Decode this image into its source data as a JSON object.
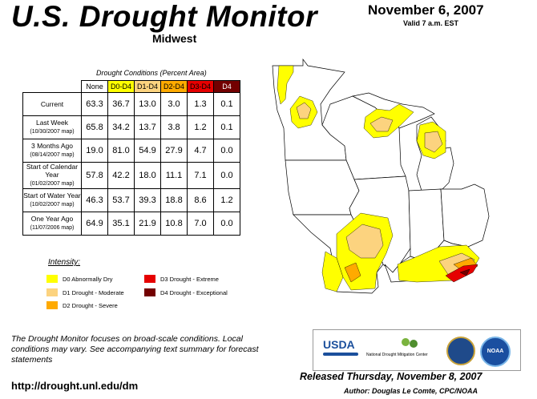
{
  "title": "U.S. Drought Monitor",
  "region": "Midwest",
  "date": "November 6, 2007",
  "valid": "Valid 7 a.m. EST",
  "table": {
    "caption": "Drought Conditions (Percent Area)",
    "headers": [
      "None",
      "D0-D4",
      "D1-D4",
      "D2-D4",
      "D3-D4",
      "D4"
    ],
    "rows": [
      {
        "label": "Current",
        "sublabel": "",
        "values": [
          "63.3",
          "36.7",
          "13.0",
          "3.0",
          "1.3",
          "0.1"
        ]
      },
      {
        "label": "Last Week",
        "sublabel": "(10/30/2007 map)",
        "values": [
          "65.8",
          "34.2",
          "13.7",
          "3.8",
          "1.2",
          "0.1"
        ]
      },
      {
        "label": "3 Months Ago",
        "sublabel": "(08/14/2007 map)",
        "values": [
          "19.0",
          "81.0",
          "54.9",
          "27.9",
          "4.7",
          "0.0"
        ]
      },
      {
        "label": "Start of Calendar Year",
        "sublabel": "(01/02/2007 map)",
        "values": [
          "57.8",
          "42.2",
          "18.0",
          "11.1",
          "7.1",
          "0.0"
        ]
      },
      {
        "label": "Start of Water Year",
        "sublabel": "(10/02/2007 map)",
        "values": [
          "46.3",
          "53.7",
          "39.3",
          "18.8",
          "8.6",
          "1.2"
        ]
      },
      {
        "label": "One Year Ago",
        "sublabel": "(11/07/2006 map)",
        "values": [
          "64.9",
          "35.1",
          "21.9",
          "10.8",
          "7.0",
          "0.0"
        ]
      }
    ]
  },
  "legend": {
    "title": "Intensity:",
    "items": [
      {
        "label": "D0 Abnormally Dry",
        "color": "#ffff00"
      },
      {
        "label": "D1 Drought - Moderate",
        "color": "#fcd37f"
      },
      {
        "label": "D2 Drought - Severe",
        "color": "#ffaa00"
      },
      {
        "label": "D3 Drought - Extreme",
        "color": "#e60000"
      },
      {
        "label": "D4 Drought - Exceptional",
        "color": "#730000"
      }
    ]
  },
  "note": "The Drought Monitor focuses on broad-scale conditions. Local conditions may vary. See accompanying text summary for forecast statements",
  "url": "http://drought.unl.edu/dm",
  "logos": {
    "usda": "USDA",
    "ndmc": "National Drought Mitigation Center",
    "commerce": "commerce-seal-icon",
    "noaa": "NOAA"
  },
  "released": "Released Thursday, November 8, 2007",
  "author": "Author: Douglas Le Comte, CPC/NOAA"
}
